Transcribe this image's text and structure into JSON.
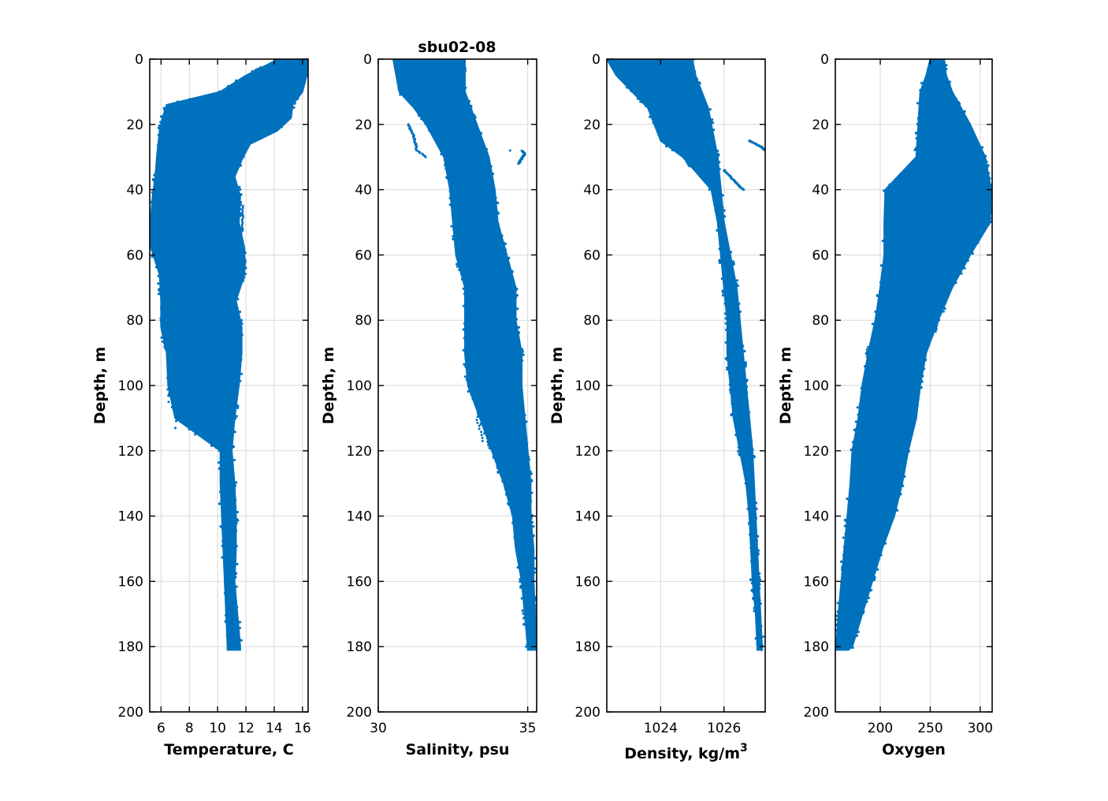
{
  "figure": {
    "title": "sbu02-08"
  },
  "colors": {
    "series": "#0072bd",
    "grid": "#d9d9d9",
    "axes": "#000000"
  },
  "chart_data": [
    {
      "type": "scatter",
      "title": "",
      "xlabel": "Temperature, C",
      "ylabel": "Depth, m",
      "xlim": [
        5.2,
        16.4
      ],
      "ylim": [
        0,
        200
      ],
      "y_reversed": true,
      "grid": true,
      "xticks": [
        6,
        8,
        10,
        12,
        14,
        16
      ],
      "yticks": [
        0,
        20,
        40,
        60,
        80,
        100,
        120,
        140,
        160,
        180,
        200
      ],
      "series": [
        {
          "profiles": [
            {
              "depth": [
                0,
                5,
                10,
                14,
                18,
                22,
                26,
                30,
                36,
                42,
                50,
                58,
                66,
                74,
                82,
                90,
                100,
                110,
                120,
                130,
                140,
                150,
                160,
                170,
                180,
                181
              ],
              "min": [
                14.3,
                12.0,
                10.2,
                6.4,
                6.1,
                5.9,
                5.8,
                5.7,
                5.6,
                5.4,
                5.25,
                5.3,
                5.9,
                6.0,
                6.0,
                6.4,
                6.5,
                7.0,
                10.2,
                10.2,
                10.3,
                10.4,
                10.5,
                10.6,
                10.7,
                10.7
              ],
              "max": [
                16.4,
                16.3,
                16.0,
                15.3,
                15.2,
                14.2,
                12.3,
                11.8,
                11.2,
                11.6,
                11.5,
                11.9,
                11.9,
                11.3,
                11.7,
                11.7,
                11.5,
                11.2,
                11.0,
                11.2,
                11.3,
                11.3,
                11.2,
                11.4,
                11.6,
                11.6
              ]
            }
          ],
          "curves": [
            {
              "depth": [
                15,
                30,
                45,
                60,
                75,
                90,
                105
              ],
              "x": [
                6.2,
                6.4,
                6.1,
                6.3,
                6.8,
                6.6,
                6.5
              ]
            },
            {
              "depth": [
                30,
                50,
                70,
                90,
                113
              ],
              "x": [
                7.3,
                7.6,
                7.8,
                7.5,
                7.0
              ]
            },
            {
              "depth": [
                35,
                55,
                75,
                95,
                115
              ],
              "x": [
                9.4,
                9.0,
                8.5,
                8.8,
                8.4
              ]
            },
            {
              "depth": [
                40,
                60,
                80,
                100,
                120
              ],
              "x": [
                10.8,
                10.5,
                9.9,
                10.4,
                10.1
              ]
            },
            {
              "depth": [
                45,
                55,
                62,
                68
              ],
              "x": [
                11.8,
                11.7,
                11.9,
                11.8
              ]
            }
          ]
        }
      ]
    },
    {
      "type": "scatter",
      "title": "sbu02-08",
      "xlabel": "Salinity, psu",
      "ylabel": "Depth, m",
      "xlim": [
        30,
        35.3
      ],
      "ylim": [
        0,
        200
      ],
      "y_reversed": true,
      "grid": true,
      "xticks": [
        30,
        35
      ],
      "yticks": [
        0,
        20,
        40,
        60,
        80,
        100,
        120,
        140,
        160,
        180,
        200
      ],
      "series": [
        {
          "profiles": [
            {
              "depth": [
                0,
                5,
                10,
                15,
                20,
                25,
                30,
                40,
                50,
                60,
                70,
                80,
                90,
                100,
                110,
                120,
                130,
                140,
                150,
                160,
                170,
                180,
                181
              ],
              "min": [
                30.5,
                30.6,
                30.7,
                31.2,
                31.6,
                31.9,
                32.2,
                32.4,
                32.5,
                32.6,
                32.9,
                32.9,
                32.9,
                33.0,
                33.4,
                33.8,
                34.2,
                34.5,
                34.6,
                34.8,
                34.9,
                35.0,
                35.0
              ],
              "max": [
                32.9,
                32.9,
                32.9,
                33.1,
                33.3,
                33.5,
                33.7,
                33.9,
                34.0,
                34.3,
                34.6,
                34.6,
                34.8,
                34.8,
                34.9,
                35.0,
                35.1,
                35.1,
                35.2,
                35.2,
                35.25,
                35.3,
                35.3
              ]
            }
          ],
          "curves": [
            {
              "depth": [
                20,
                24,
                28,
                30
              ],
              "x": [
                31.0,
                31.2,
                31.3,
                31.6
              ]
            },
            {
              "depth": [
                28,
                26,
                29,
                32
              ],
              "x": [
                34.4,
                34.6,
                34.9,
                34.7
              ]
            },
            {
              "depth": [
                80,
                90,
                100,
                110,
                117
              ],
              "x": [
                33.2,
                33.4,
                33.6,
                33.3,
                33.5
              ]
            },
            {
              "depth": [
                60,
                80,
                100,
                120,
                127
              ],
              "x": [
                33.8,
                33.9,
                34.0,
                34.2,
                34.4
              ]
            }
          ]
        }
      ]
    },
    {
      "type": "scatter",
      "title": "",
      "xlabel": "Density, kg/m",
      "xlabel_superscript": "3",
      "ylabel": "Depth, m",
      "xlim": [
        1022.3,
        1027.3
      ],
      "ylim": [
        0,
        200
      ],
      "y_reversed": true,
      "grid": true,
      "xticks": [
        1024,
        1026
      ],
      "yticks": [
        0,
        20,
        40,
        60,
        80,
        100,
        120,
        140,
        160,
        180,
        200
      ],
      "series": [
        {
          "profiles": [
            {
              "depth": [
                0,
                5,
                10,
                15,
                20,
                25,
                30,
                40,
                50,
                60,
                70,
                80,
                90,
                100,
                110,
                120,
                130,
                140,
                150,
                160,
                170,
                180,
                181
              ],
              "min": [
                1022.3,
                1022.6,
                1023.1,
                1023.6,
                1023.8,
                1024.0,
                1024.7,
                1025.6,
                1025.8,
                1025.9,
                1026.0,
                1026.1,
                1026.1,
                1026.2,
                1026.3,
                1026.5,
                1026.7,
                1026.8,
                1026.85,
                1026.9,
                1027.0,
                1027.05,
                1027.05
              ],
              "max": [
                1025.0,
                1025.1,
                1025.3,
                1025.5,
                1025.6,
                1025.7,
                1025.8,
                1025.9,
                1026.0,
                1026.2,
                1026.4,
                1026.5,
                1026.6,
                1026.7,
                1026.8,
                1026.9,
                1026.95,
                1027.0,
                1027.05,
                1027.1,
                1027.15,
                1027.2,
                1027.2
              ]
            }
          ],
          "curves": [
            {
              "depth": [
                25,
                26,
                27,
                28
              ],
              "x": [
                1026.8,
                1027.0,
                1027.2,
                1027.3
              ]
            },
            {
              "depth": [
                34,
                36,
                38,
                40
              ],
              "x": [
                1026.0,
                1026.2,
                1026.4,
                1026.6
              ]
            }
          ]
        }
      ]
    },
    {
      "type": "scatter",
      "title": "",
      "xlabel": "Oxygen",
      "ylabel": "Depth, m",
      "xlim": [
        155,
        312
      ],
      "ylim": [
        0,
        200
      ],
      "y_reversed": true,
      "grid": true,
      "xticks": [
        200,
        250,
        300
      ],
      "yticks": [
        0,
        20,
        40,
        60,
        80,
        100,
        120,
        140,
        160,
        180,
        200
      ],
      "series": [
        {
          "profiles": [
            {
              "depth": [
                0,
                5,
                10,
                20,
                30,
                40,
                50,
                60,
                70,
                80,
                90,
                100,
                110,
                120,
                130,
                140,
                150,
                160,
                170,
                180,
                181
              ],
              "min": [
                250,
                246,
                240,
                238,
                236,
                205,
                204,
                204,
                200,
                195,
                188,
                182,
                178,
                172,
                170,
                167,
                164,
                161,
                158,
                156,
                156
              ],
              "max": [
                264,
                266,
                272,
                290,
                305,
                311,
                310,
                290,
                272,
                258,
                246,
                240,
                236,
                228,
                222,
                214,
                202,
                192,
                182,
                172,
                168
              ]
            }
          ],
          "curves": [
            {
              "depth": [
                92,
                100,
                110,
                120,
                130
              ],
              "x": [
                198,
                193,
                188,
                183,
                178
              ]
            },
            {
              "depth": [
                40,
                45,
                50,
                58,
                64
              ],
              "x": [
                311,
                307,
                300,
                290,
                280
              ]
            }
          ]
        }
      ]
    }
  ]
}
